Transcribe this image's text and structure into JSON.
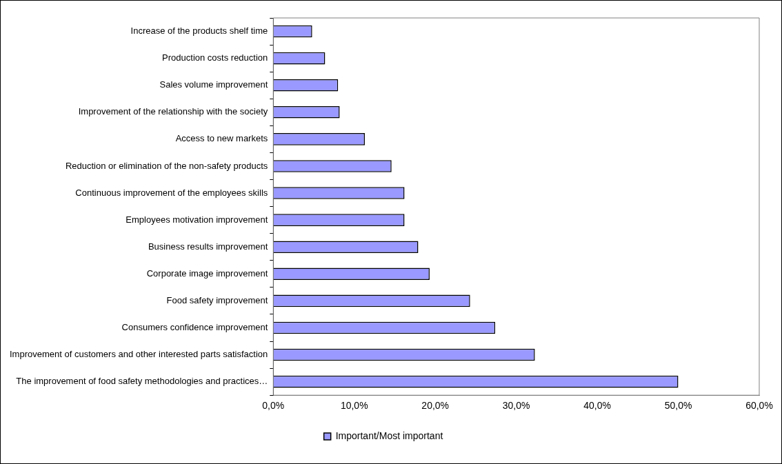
{
  "chart_data": {
    "type": "bar",
    "orientation": "horizontal",
    "categories": [
      "Increase of the products shelf time",
      "Production costs reduction",
      "Sales volume improvement",
      "Improvement of the relationship with the society",
      "Access to new markets",
      "Reduction or elimination of the non-safety products",
      "Continuous improvement of the employees skills",
      "Employees motivation improvement",
      "Business results improvement",
      "Corporate image improvement",
      "Food safety improvement",
      "Consumers confidence improvement",
      "Improvement of customers and other interested parts satisfaction",
      "The improvement of food safety methodologies and practices…"
    ],
    "series": [
      {
        "name": "Important/Most important",
        "color": "#9999ff",
        "values": [
          4.8,
          6.4,
          8.0,
          8.2,
          11.3,
          14.6,
          16.2,
          16.2,
          17.9,
          19.3,
          24.3,
          27.4,
          32.3,
          50.0
        ]
      }
    ],
    "xlim": [
      0,
      60
    ],
    "xticks": [
      {
        "value": 0,
        "label": "0,0%"
      },
      {
        "value": 10,
        "label": "10,0%"
      },
      {
        "value": 20,
        "label": "20,0%"
      },
      {
        "value": 30,
        "label": "30,0%"
      },
      {
        "value": 40,
        "label": "40,0%"
      },
      {
        "value": 50,
        "label": "50,0%"
      },
      {
        "value": 60,
        "label": "60,0%"
      }
    ],
    "grid": false,
    "legend": "bottom"
  }
}
